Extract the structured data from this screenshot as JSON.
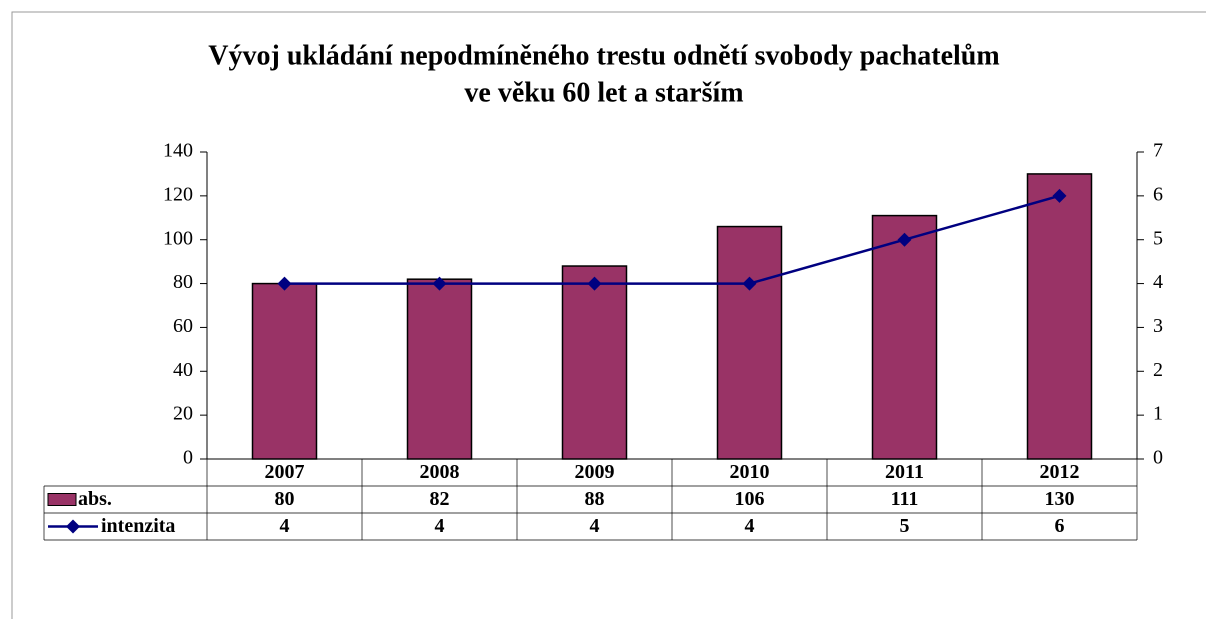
{
  "chart_data": {
    "type": "bar_line",
    "title": [
      "Vývoj ukládání nepodmíněného trestu odnětí svobody pachatelům",
      "ve věku 60 let a starším"
    ],
    "categories": [
      "2007",
      "2008",
      "2009",
      "2010",
      "2011",
      "2012"
    ],
    "series": [
      {
        "name": "abs.",
        "type": "bar",
        "color": "#993366",
        "values": [
          80,
          82,
          88,
          106,
          111,
          130
        ]
      },
      {
        "name": "intenzita",
        "type": "line",
        "axis": "y2",
        "color": "#000080",
        "values": [
          4,
          4,
          4,
          4,
          5,
          6
        ]
      }
    ],
    "ylim": [
      0,
      140
    ],
    "yticks": [
      0,
      20,
      40,
      60,
      80,
      100,
      120,
      140
    ],
    "y2lim": [
      0,
      7
    ],
    "y2ticks": [
      0,
      1,
      2,
      3,
      4,
      5,
      6,
      7
    ],
    "data_table": true
  }
}
